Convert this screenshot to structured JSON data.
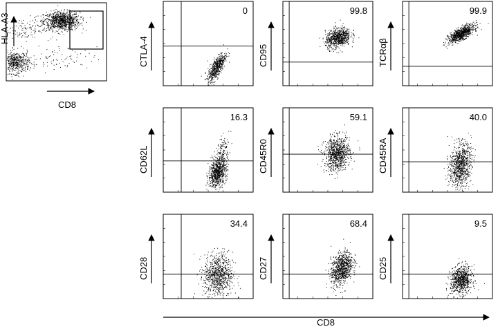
{
  "figure": {
    "gate_plot": {
      "x_label": "CD8",
      "y_label": "HLA-A3"
    },
    "common_x_label": "CD8"
  },
  "chart_data": [
    {
      "type": "scatter",
      "name": "gating",
      "xlabel": "CD8",
      "ylabel": "HLA-A3",
      "clusters": [
        {
          "cx": 0.55,
          "cy": 0.77,
          "sx": 0.09,
          "sy": 0.06,
          "n": 900
        },
        {
          "cx": 0.09,
          "cy": 0.24,
          "sx": 0.07,
          "sy": 0.07,
          "n": 500
        },
        {
          "cx": 0.18,
          "cy": 0.67,
          "sx": 0.14,
          "sy": 0.07,
          "n": 130
        },
        {
          "cx": 0.5,
          "cy": 0.28,
          "sx": 0.2,
          "sy": 0.08,
          "n": 90
        }
      ],
      "gate": {
        "x0": 0.41,
        "x1": 0.97,
        "y0": 0.54,
        "y1": 0.96
      }
    },
    {
      "type": "scatter",
      "name": "ctla4",
      "ylabel": "CTLA-4",
      "percent": "0",
      "gate_x": 0.2,
      "gate_y": 0.47,
      "clusters": [
        {
          "cx": 0.59,
          "cy": 0.22,
          "sx": 0.05,
          "sy": 0.09,
          "n": 550,
          "rho": 0.75
        }
      ]
    },
    {
      "type": "scatter",
      "name": "cd95",
      "ylabel": "CD95",
      "percent": "99.8",
      "gate_x": 0.07,
      "gate_y": 0.28,
      "clusters": [
        {
          "cx": 0.61,
          "cy": 0.57,
          "sx": 0.07,
          "sy": 0.06,
          "n": 750,
          "rho": 0.3
        }
      ]
    },
    {
      "type": "scatter",
      "name": "tcrab",
      "ylabel": "TCRαβ",
      "percent": "99.9",
      "gate_x": 0.07,
      "gate_y": 0.23,
      "clusters": [
        {
          "cx": 0.65,
          "cy": 0.62,
          "sx": 0.07,
          "sy": 0.05,
          "n": 850,
          "rho": 0.7
        }
      ]
    },
    {
      "type": "scatter",
      "name": "cd62l",
      "ylabel": "CD62L",
      "percent": "16.3",
      "gate_x": 0.2,
      "gate_y": 0.37,
      "clusters": [
        {
          "cx": 0.6,
          "cy": 0.23,
          "sx": 0.05,
          "sy": 0.08,
          "n": 700,
          "rho": 0.3
        },
        {
          "cx": 0.65,
          "cy": 0.45,
          "sx": 0.04,
          "sy": 0.1,
          "n": 180,
          "rho": 0.5
        }
      ]
    },
    {
      "type": "scatter",
      "name": "cd45r0",
      "ylabel": "CD45R0",
      "percent": "59.1",
      "gate_x": 0.07,
      "gate_y": 0.45,
      "clusters": [
        {
          "cx": 0.6,
          "cy": 0.46,
          "sx": 0.07,
          "sy": 0.1,
          "n": 850,
          "rho": 0.1
        }
      ]
    },
    {
      "type": "scatter",
      "name": "cd45ra",
      "ylabel": "CD45RA",
      "percent": "40.0",
      "gate_x": 0.07,
      "gate_y": 0.36,
      "clusters": [
        {
          "cx": 0.64,
          "cy": 0.32,
          "sx": 0.06,
          "sy": 0.13,
          "n": 850,
          "rho": 0.2
        }
      ]
    },
    {
      "type": "scatter",
      "name": "cd28",
      "ylabel": "CD28",
      "percent": "34.4",
      "gate_x": 0.2,
      "gate_y": 0.29,
      "clusters": [
        {
          "cx": 0.61,
          "cy": 0.28,
          "sx": 0.08,
          "sy": 0.13,
          "n": 800,
          "rho": 0.05
        }
      ]
    },
    {
      "type": "scatter",
      "name": "cd27",
      "ylabel": "CD27",
      "percent": "68.4",
      "gate_x": 0.07,
      "gate_y": 0.29,
      "clusters": [
        {
          "cx": 0.65,
          "cy": 0.36,
          "sx": 0.06,
          "sy": 0.1,
          "n": 850,
          "rho": 0.35
        }
      ]
    },
    {
      "type": "scatter",
      "name": "cd25",
      "ylabel": "CD25",
      "percent": "9.5",
      "gate_x": 0.07,
      "gate_y": 0.29,
      "clusters": [
        {
          "cx": 0.65,
          "cy": 0.22,
          "sx": 0.06,
          "sy": 0.08,
          "n": 750,
          "rho": 0.1
        }
      ]
    }
  ]
}
